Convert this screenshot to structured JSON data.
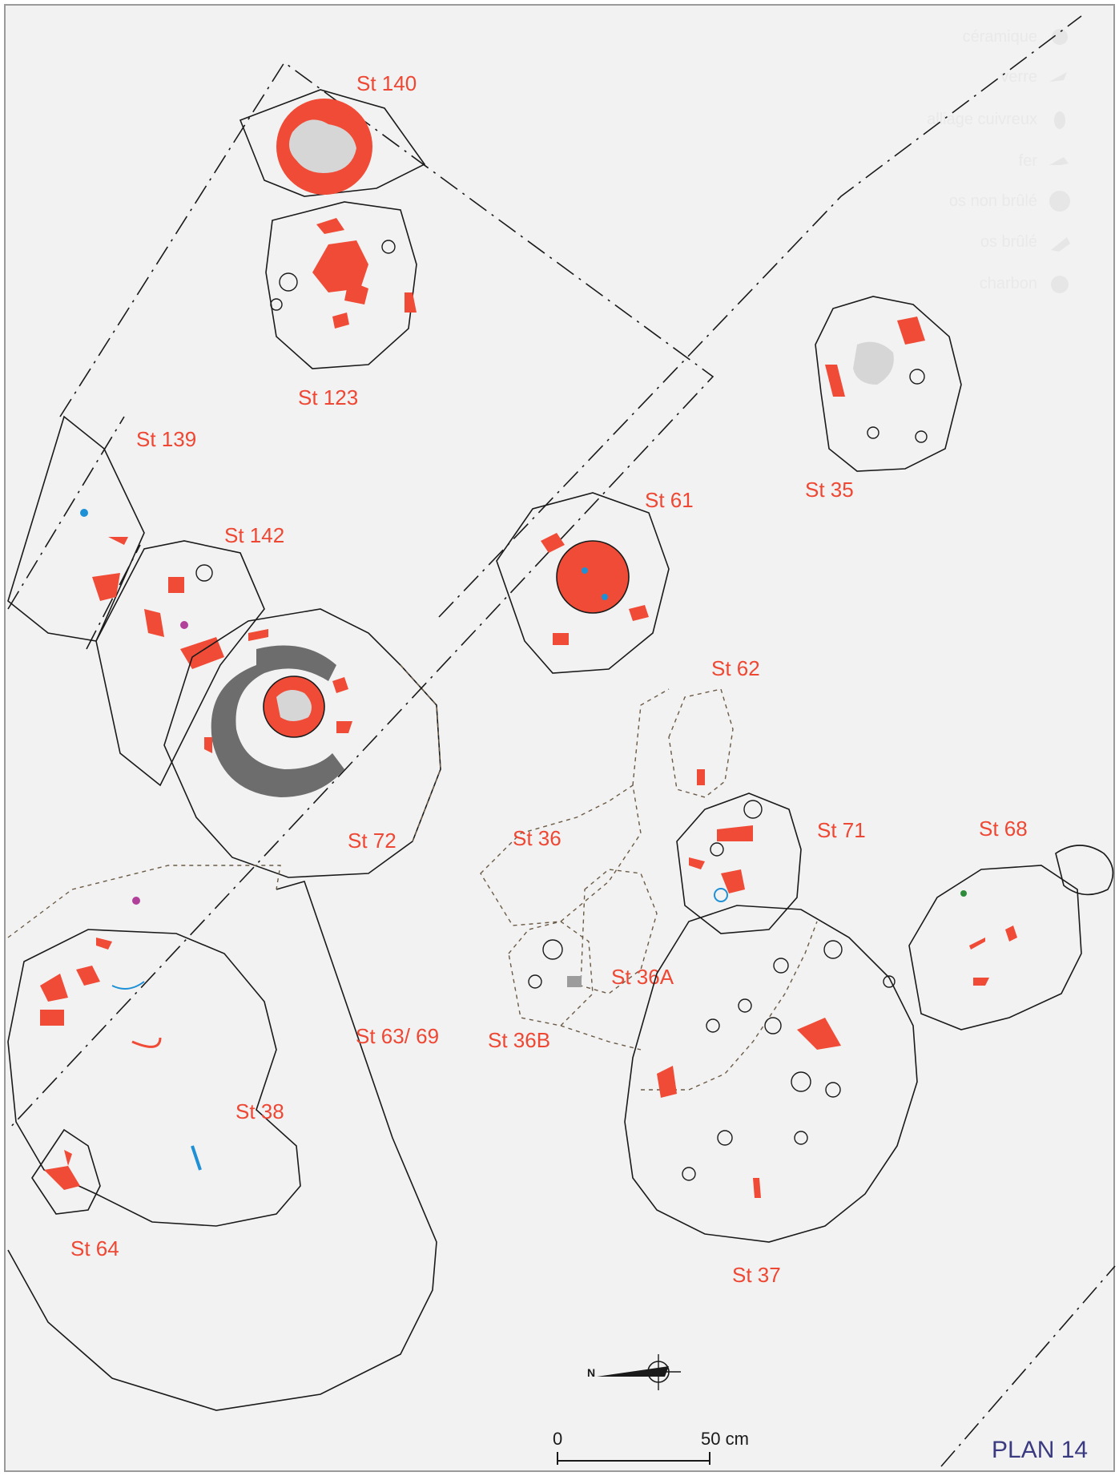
{
  "plan_title": "PLAN 14",
  "legend": [
    {
      "label": "céramique",
      "icon": "sherd-icon"
    },
    {
      "label": "verre",
      "icon": "glass-icon"
    },
    {
      "label": "alliage cuivreux",
      "icon": "copper-alloy-icon"
    },
    {
      "label": "fer",
      "icon": "iron-icon"
    },
    {
      "label": "os non brûlé",
      "icon": "unburnt-bone-icon"
    },
    {
      "label": "os brûlé",
      "icon": "burnt-bone-icon"
    },
    {
      "label": "charbon",
      "icon": "charcoal-icon"
    }
  ],
  "features": {
    "st140": "St 140",
    "st123": "St 123",
    "st139": "St 139",
    "st142": "St 142",
    "st61": "St 61",
    "st35": "St 35",
    "st62": "St 62",
    "st72": "St 72",
    "st36": "St 36",
    "st71": "St 71",
    "st68": "St 68",
    "st36a": "St 36A",
    "st6369": "St 63/ 69",
    "st36b": "St 36B",
    "st38": "St 38",
    "st64": "St 64",
    "st37": "St 37"
  },
  "scale": {
    "start": "0",
    "end": "50 cm"
  },
  "north": "N",
  "colors": {
    "ceramic": "#f04b36",
    "copper_alloy": "#1e90d6",
    "iron": "#2e8b3a",
    "glass": "#b0409a",
    "charcoal": "#6d6d6d",
    "label": "#ee4733",
    "title": "#3a3a80"
  }
}
